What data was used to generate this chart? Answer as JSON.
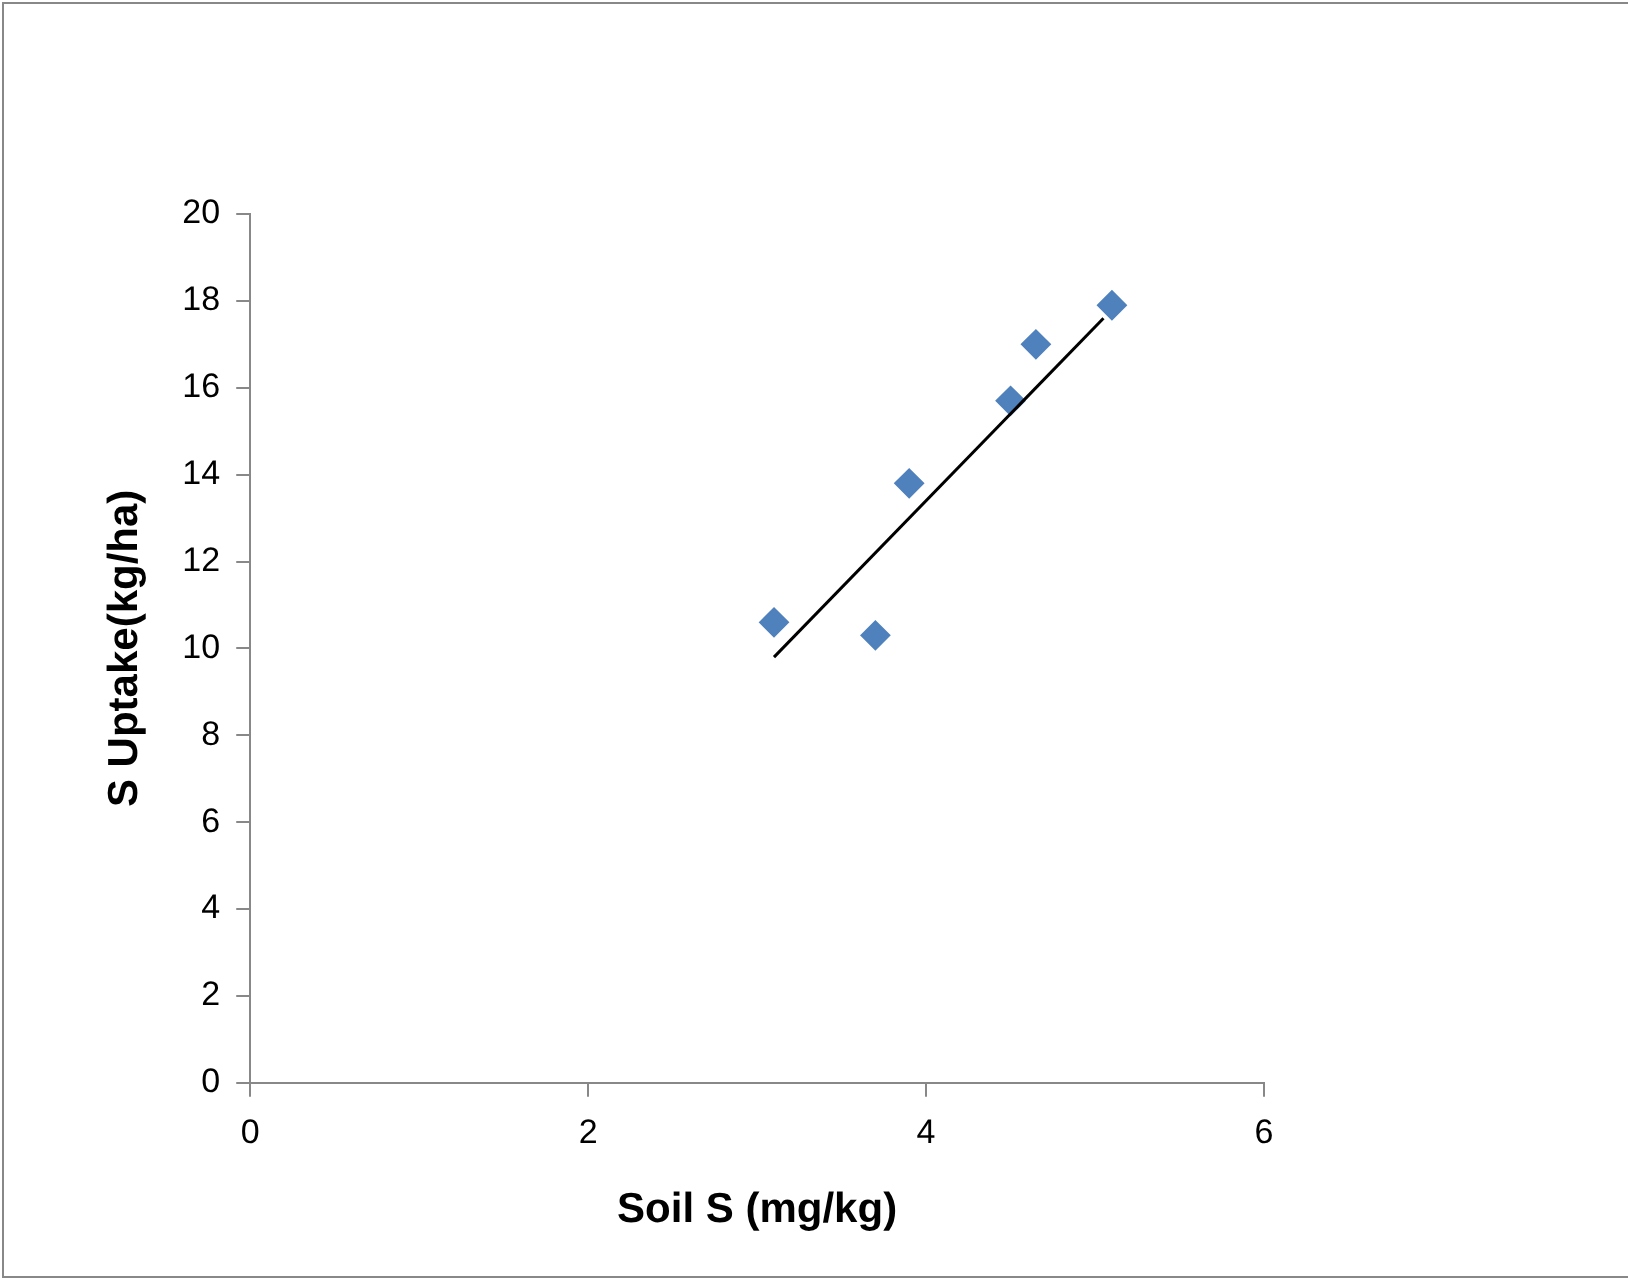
{
  "chart_data": {
    "type": "scatter",
    "xlabel": "Soil S (mg/kg)",
    "ylabel": "S Uptake(kg/ha)",
    "xlim": [
      0,
      6
    ],
    "xticks": [
      0,
      2,
      4,
      6
    ],
    "ylim": [
      0,
      20
    ],
    "yticks": [
      0,
      2,
      4,
      6,
      8,
      10,
      12,
      14,
      16,
      18,
      20
    ],
    "grid": false,
    "legend": false,
    "marker": "diamond",
    "series": [
      {
        "color": "#4f81bd",
        "x": [
          3.1,
          3.7,
          3.9,
          4.5,
          4.65,
          5.1
        ],
        "values": [
          10.6,
          10.3,
          13.8,
          15.7,
          17.0,
          17.9
        ]
      },
      {
        "type": "line",
        "color": "#000000",
        "marker": "none",
        "x": [
          3.1,
          5.05
        ],
        "values": [
          9.8,
          17.6
        ]
      }
    ]
  }
}
